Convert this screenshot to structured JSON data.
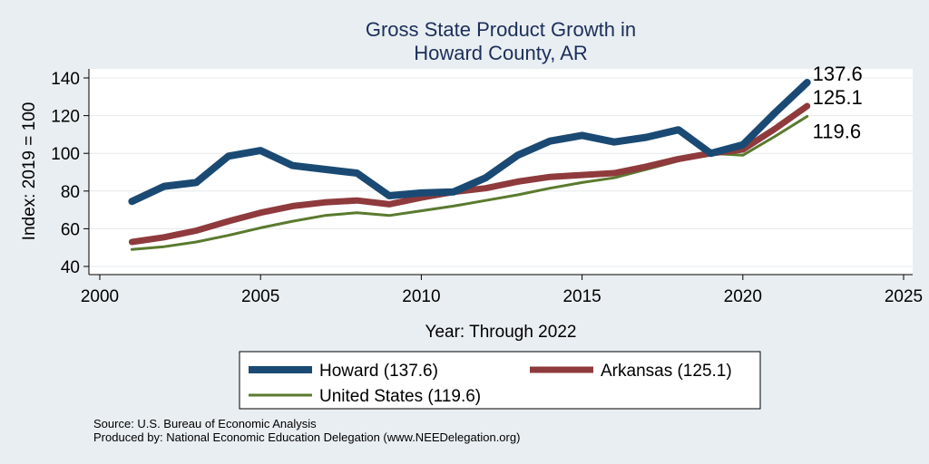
{
  "chart_data": {
    "type": "line",
    "title": "Gross State Product Growth in",
    "subtitle": "Howard County, AR",
    "xlabel": "Year: Through 2022",
    "ylabel": "Index: 2019 = 100",
    "xlim": [
      2000,
      2025
    ],
    "ylim": [
      35,
      145
    ],
    "xticks": [
      2000,
      2005,
      2010,
      2015,
      2020,
      2025
    ],
    "yticks": [
      40,
      60,
      80,
      100,
      120,
      140
    ],
    "grid": true,
    "x": [
      2001,
      2002,
      2003,
      2004,
      2005,
      2006,
      2007,
      2008,
      2009,
      2010,
      2011,
      2012,
      2013,
      2014,
      2015,
      2016,
      2017,
      2018,
      2019,
      2020,
      2021,
      2022
    ],
    "series": [
      {
        "name": "Howard",
        "legend": "Howard  (137.6)",
        "color": "#1a4a73",
        "values": [
          74.5,
          82.5,
          84.5,
          98.5,
          101.5,
          93.5,
          91.5,
          89.5,
          77.5,
          79.0,
          79.5,
          87.0,
          99.0,
          106.5,
          109.5,
          106.0,
          108.5,
          112.5,
          100.0,
          104.5,
          121.5,
          137.6
        ]
      },
      {
        "name": "Arkansas",
        "legend": "Arkansas (125.1)",
        "color": "#8f3a3c",
        "values": [
          53.0,
          55.5,
          59.0,
          64.0,
          68.5,
          72.0,
          74.0,
          75.0,
          73.0,
          76.5,
          79.5,
          81.5,
          85.0,
          87.5,
          88.5,
          89.5,
          93.0,
          97.0,
          100.0,
          102.0,
          113.0,
          125.1
        ]
      },
      {
        "name": "United States",
        "legend": "United States (119.6)",
        "color": "#5a7a2e",
        "values": [
          49.0,
          50.5,
          53.0,
          56.5,
          60.5,
          64.0,
          67.0,
          68.5,
          67.0,
          69.5,
          72.0,
          75.0,
          78.0,
          81.5,
          84.5,
          87.0,
          91.5,
          96.0,
          100.0,
          99.0,
          109.0,
          119.6
        ]
      }
    ],
    "end_labels": [
      "137.6",
      "125.1",
      "119.6"
    ],
    "legend_position": "bottom"
  },
  "source": "Source: U.S. Bureau of Economic Analysis",
  "produced_by": "Produced by: National Economic Education Delegation (www.NEEDelegation.org)"
}
